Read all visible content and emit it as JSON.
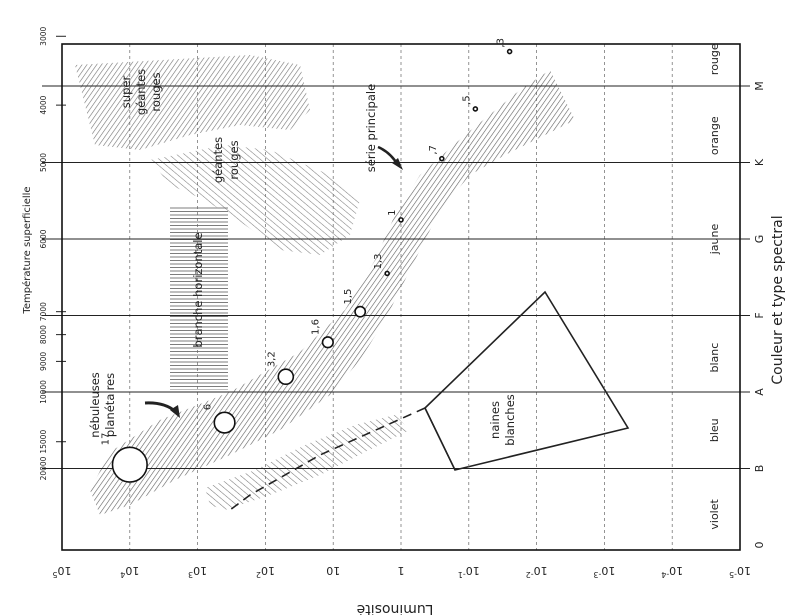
{
  "chart_data": {
    "type": "scatter",
    "orientation": "rotated-90-counterclockwise",
    "title": "",
    "ylabel": "Luminosité",
    "ylabel_caption": "Couleur et type spectral",
    "temperature_axis_label": "Température superficielle",
    "y_scale": "log",
    "ylim": [
      "10^-5",
      "10^5"
    ],
    "y_ticks": [
      {
        "base": "10",
        "exp": "5",
        "value": 100000
      },
      {
        "base": "10",
        "exp": "4",
        "value": 10000
      },
      {
        "base": "10",
        "exp": "3",
        "value": 1000
      },
      {
        "base": "10",
        "exp": "2",
        "value": 100
      },
      {
        "base": "10",
        "exp": "",
        "value": 10
      },
      {
        "base": "1",
        "exp": "",
        "value": 1
      },
      {
        "base": "10",
        "exp": "-1",
        "value": 0.1
      },
      {
        "base": "10",
        "exp": "-2",
        "value": 0.01
      },
      {
        "base": "10",
        "exp": "-3",
        "value": 0.001
      },
      {
        "base": "10",
        "exp": "-4",
        "value": 0.0001
      },
      {
        "base": "10",
        "exp": "-5",
        "value": 1e-05
      }
    ],
    "spectral_types": [
      {
        "label": "0",
        "position": 0
      },
      {
        "label": "B",
        "position": 1
      },
      {
        "label": "A",
        "position": 2
      },
      {
        "label": "F",
        "position": 3
      },
      {
        "label": "G",
        "position": 4
      },
      {
        "label": "K",
        "position": 5
      },
      {
        "label": "M",
        "position": 6
      }
    ],
    "colors": [
      {
        "label": "violet",
        "position": 0.4
      },
      {
        "label": "bleu",
        "position": 1.5
      },
      {
        "label": "blanc",
        "position": 2.45
      },
      {
        "label": "jaune",
        "position": 4.0
      },
      {
        "label": "orange",
        "position": 5.35
      },
      {
        "label": "rouge",
        "position": 6.35
      }
    ],
    "temperature_ticks": [
      {
        "label": "20000",
        "position": 1.0
      },
      {
        "label": "15000",
        "position": 1.35
      },
      {
        "label": "10000",
        "position": 2.0
      },
      {
        "label": "9000",
        "position": 2.4
      },
      {
        "label": "8000",
        "position": 2.75
      },
      {
        "label": "7000",
        "position": 3.05
      },
      {
        "label": "6000",
        "position": 4.0
      },
      {
        "label": "5000",
        "position": 5.0
      },
      {
        "label": "4000",
        "position": 5.75
      },
      {
        "label": "3000",
        "position": 6.65
      }
    ],
    "stars": [
      {
        "label": "17",
        "position": 1.05,
        "luminosity": 10000,
        "size": 17
      },
      {
        "label": "6",
        "position": 1.6,
        "luminosity": 400,
        "size": 6
      },
      {
        "label": "3,2",
        "position": 2.2,
        "luminosity": 50,
        "size": 3.2
      },
      {
        "label": "1,6",
        "position": 2.65,
        "luminosity": 12,
        "size": 1.6
      },
      {
        "label": "1,5",
        "position": 3.05,
        "luminosity": 4,
        "size": 1.5
      },
      {
        "label": "1,3",
        "position": 3.55,
        "luminosity": 1.6,
        "size": 1.3
      },
      {
        "label": "1",
        "position": 4.25,
        "luminosity": 1,
        "size": 1
      },
      {
        "label": ",7",
        "position": 5.05,
        "luminosity": 0.25,
        "size": 0.7
      },
      {
        "label": ",5",
        "position": 5.7,
        "luminosity": 0.08,
        "size": 0.5
      },
      {
        "label": ",3",
        "position": 6.45,
        "luminosity": 0.025,
        "size": 0.3
      }
    ],
    "annotations": {
      "main_sequence": "série principale",
      "supergiants": [
        "super",
        "géantes",
        "rouges"
      ],
      "giants": [
        "géantes",
        "rouges"
      ],
      "horizontal_branch": "branche horizontale",
      "planetary_nebulae": [
        "nébuleuses",
        "planétaires"
      ],
      "white_dwarfs": [
        "naines",
        "blanches"
      ]
    }
  }
}
